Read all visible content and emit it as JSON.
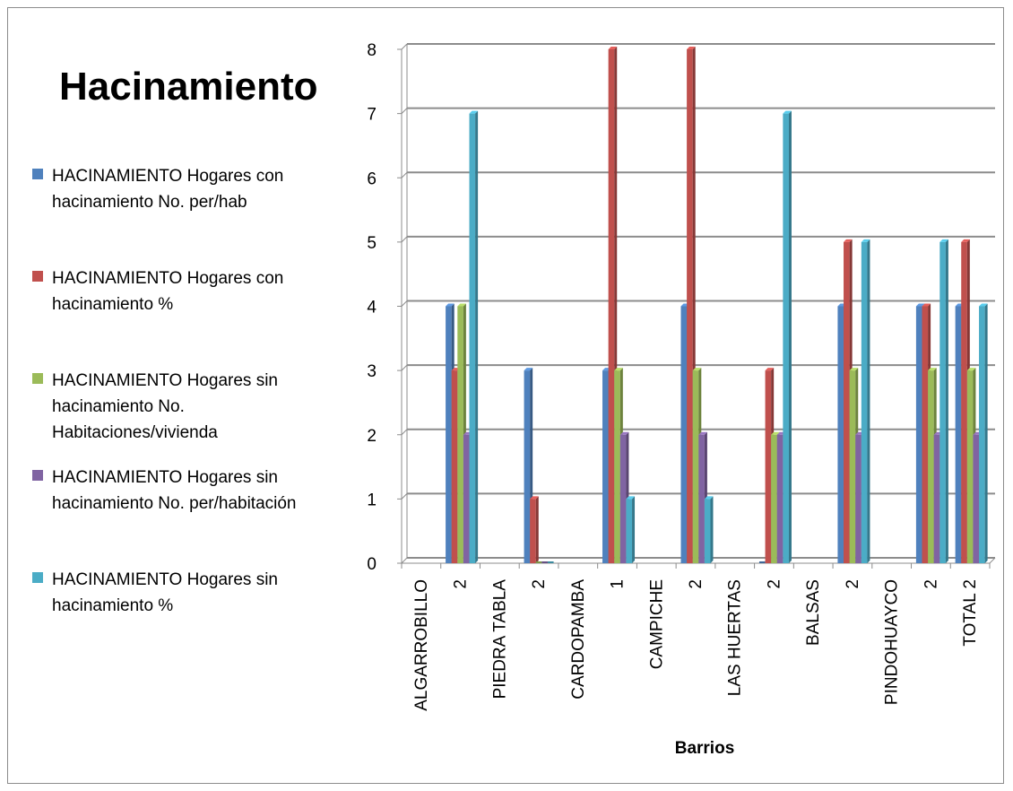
{
  "chart_data": {
    "type": "bar",
    "title": "Hacinamiento",
    "xlabel": "Barrios",
    "ylabel": "",
    "ylim": [
      0,
      8
    ],
    "yticks": [
      0,
      1,
      2,
      3,
      4,
      5,
      6,
      7,
      8
    ],
    "grid": true,
    "legend_position": "left",
    "categories": [
      "ALGARROBILLO",
      "2",
      "PIEDRA TABLA",
      "2",
      "CARDOPAMBA",
      "1",
      "CAMPICHE",
      "2",
      "LAS HUERTAS",
      "2",
      "BALSAS",
      "2",
      "PINDOHUAYCO",
      "2",
      "TOTAL 2"
    ],
    "series": [
      {
        "name": "HACINAMIENTO Hogares con hacinamiento No. per/hab",
        "color": "#4F81BD",
        "values": [
          0,
          4,
          0,
          3,
          0,
          3,
          0,
          4,
          0,
          0,
          0,
          4,
          0,
          4,
          4
        ]
      },
      {
        "name": "HACINAMIENTO Hogares con hacinamiento %",
        "color": "#C0504D",
        "values": [
          0,
          3,
          0,
          1,
          0,
          8,
          0,
          8,
          0,
          3,
          0,
          5,
          0,
          4,
          5
        ]
      },
      {
        "name": "HACINAMIENTO Hogares sin hacinamiento No. Habitaciones/vivienda",
        "color": "#9BBB59",
        "values": [
          0,
          4,
          0,
          0,
          0,
          3,
          0,
          3,
          0,
          2,
          0,
          3,
          0,
          3,
          3
        ]
      },
      {
        "name": "HACINAMIENTO Hogares sin hacinamiento No. per/habitación",
        "color": "#8064A2",
        "values": [
          0,
          2,
          0,
          0,
          0,
          2,
          0,
          2,
          0,
          2,
          0,
          2,
          0,
          2,
          2
        ]
      },
      {
        "name": "HACINAMIENTO Hogares sin hacinamiento %",
        "color": "#4BACC6",
        "values": [
          0,
          7,
          0,
          0,
          0,
          1,
          0,
          1,
          0,
          7,
          0,
          5,
          0,
          5,
          4
        ]
      }
    ]
  }
}
